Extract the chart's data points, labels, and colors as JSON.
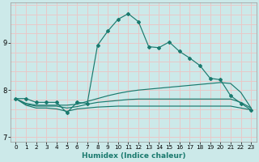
{
  "xlabel": "Humidex (Indice chaleur)",
  "xlim": [
    -0.5,
    23.5
  ],
  "ylim": [
    6.9,
    9.85
  ],
  "yticks": [
    7,
    8,
    9
  ],
  "xticks": [
    0,
    1,
    2,
    3,
    4,
    5,
    6,
    7,
    8,
    9,
    10,
    11,
    12,
    13,
    14,
    15,
    16,
    17,
    18,
    19,
    20,
    21,
    22,
    23
  ],
  "bg_color": "#cce9e9",
  "grid_color": "#e8c8c8",
  "line_color": "#1a7a6e",
  "lines": [
    {
      "x": [
        0,
        1,
        2,
        3,
        4,
        5,
        6,
        7,
        8,
        9,
        10,
        11,
        12,
        13,
        14,
        15,
        16,
        17,
        18,
        19,
        20,
        21,
        22,
        23
      ],
      "y": [
        7.82,
        7.82,
        7.74,
        7.74,
        7.74,
        7.52,
        7.74,
        7.72,
        8.95,
        9.25,
        9.5,
        9.62,
        9.45,
        8.92,
        8.9,
        9.02,
        8.82,
        8.68,
        8.52,
        8.25,
        8.22,
        7.88,
        7.72,
        7.58
      ],
      "marker": true
    },
    {
      "x": [
        0,
        1,
        2,
        3,
        4,
        5,
        6,
        7,
        8,
        9,
        10,
        11,
        12,
        13,
        14,
        15,
        16,
        17,
        18,
        19,
        20,
        21,
        22,
        23
      ],
      "y": [
        7.82,
        7.72,
        7.68,
        7.68,
        7.68,
        7.68,
        7.7,
        7.76,
        7.82,
        7.88,
        7.93,
        7.97,
        8.0,
        8.02,
        8.04,
        8.06,
        8.08,
        8.1,
        8.12,
        8.14,
        8.16,
        8.14,
        7.95,
        7.62
      ],
      "marker": false
    },
    {
      "x": [
        0,
        1,
        2,
        3,
        4,
        5,
        6,
        7,
        8,
        9,
        10,
        11,
        12,
        13,
        14,
        15,
        16,
        17,
        18,
        19,
        20,
        21,
        22,
        23
      ],
      "y": [
        7.82,
        7.7,
        7.66,
        7.66,
        7.66,
        7.62,
        7.65,
        7.7,
        7.74,
        7.76,
        7.78,
        7.8,
        7.81,
        7.81,
        7.81,
        7.81,
        7.81,
        7.81,
        7.81,
        7.81,
        7.81,
        7.81,
        7.74,
        7.62
      ],
      "marker": false
    },
    {
      "x": [
        0,
        1,
        2,
        3,
        4,
        5,
        6,
        7,
        8,
        9,
        10,
        11,
        12,
        13,
        14,
        15,
        16,
        17,
        18,
        19,
        20,
        21,
        22,
        23
      ],
      "y": [
        7.82,
        7.68,
        7.62,
        7.62,
        7.6,
        7.55,
        7.6,
        7.62,
        7.64,
        7.65,
        7.66,
        7.66,
        7.66,
        7.66,
        7.66,
        7.66,
        7.66,
        7.66,
        7.66,
        7.66,
        7.66,
        7.66,
        7.62,
        7.58
      ],
      "marker": false
    }
  ]
}
